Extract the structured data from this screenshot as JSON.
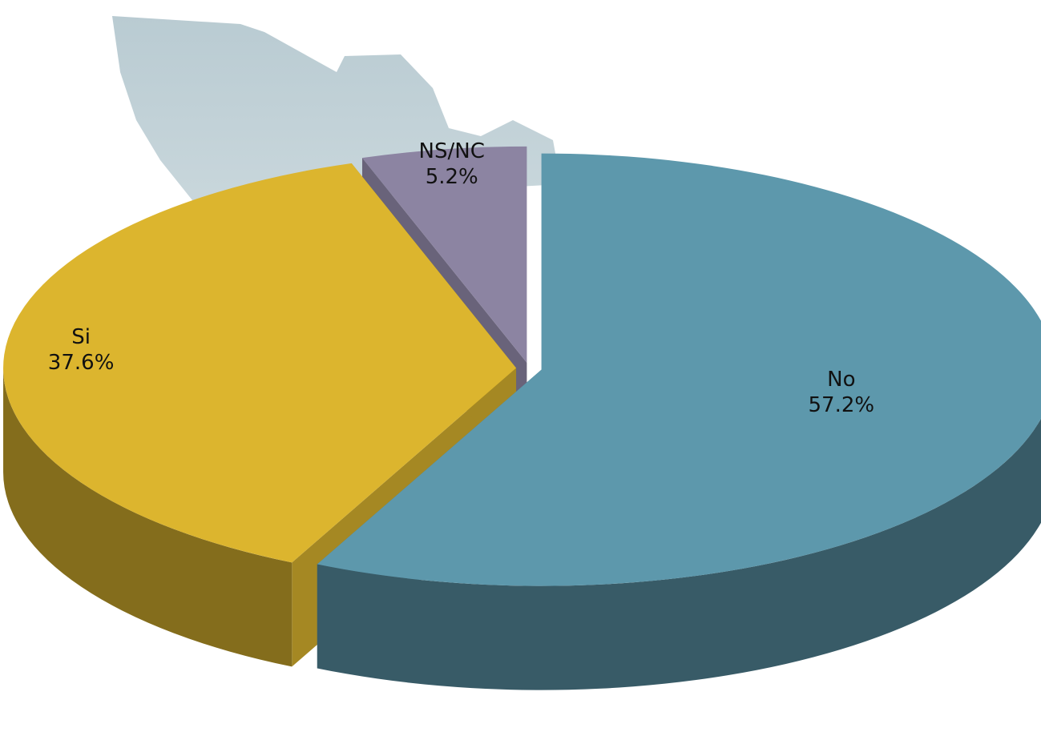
{
  "chart_data": {
    "type": "pie",
    "categories": [
      "No",
      "Si",
      "NS/NC"
    ],
    "values": [
      57.2,
      37.6,
      5.2
    ],
    "value_labels": [
      "57.2%",
      "37.6%",
      "5.2%"
    ],
    "colors": [
      "#5d98ac",
      "#dcb52e",
      "#8c84a2"
    ]
  }
}
